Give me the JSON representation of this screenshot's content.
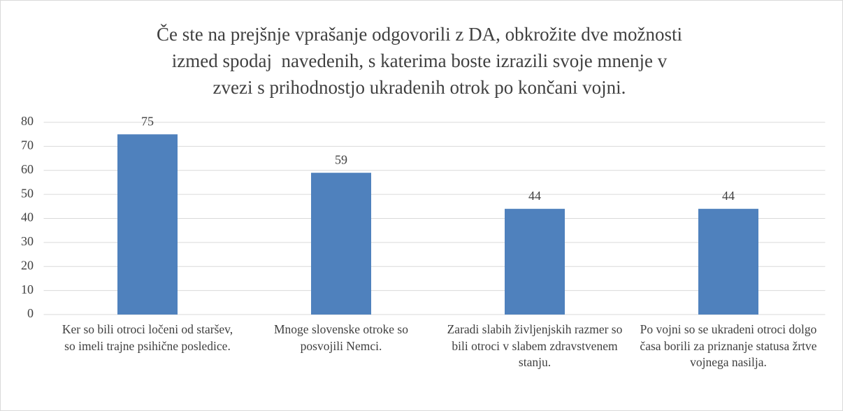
{
  "chart_data": {
    "type": "bar",
    "title": "Če ste na prejšnje vprašanje odgovorili z DA, obkrožite dve možnosti\nizmed spodaj  navedenih, s katerima boste izrazili svoje mnenje v\nzvezi s prihodnostjo ukradenih otrok po končani vojni.",
    "categories": [
      "Ker so bili otroci ločeni od staršev, so imeli trajne psihične posledice.",
      "Mnoge slovenske otroke so posvojili Nemci.",
      "Zaradi  slabih življenjskih razmer so bili otroci v slabem zdravstvenem stanju.",
      "Po vojni so se ukradeni otroci dolgo časa borili za priznanje statusa žrtve vojnega nasilja."
    ],
    "values": [
      75,
      59,
      44,
      44
    ],
    "color": "#4f81bd",
    "ylim": [
      0,
      80
    ],
    "yticks": [
      0,
      10,
      20,
      30,
      40,
      50,
      60,
      70,
      80
    ],
    "grid": true
  }
}
